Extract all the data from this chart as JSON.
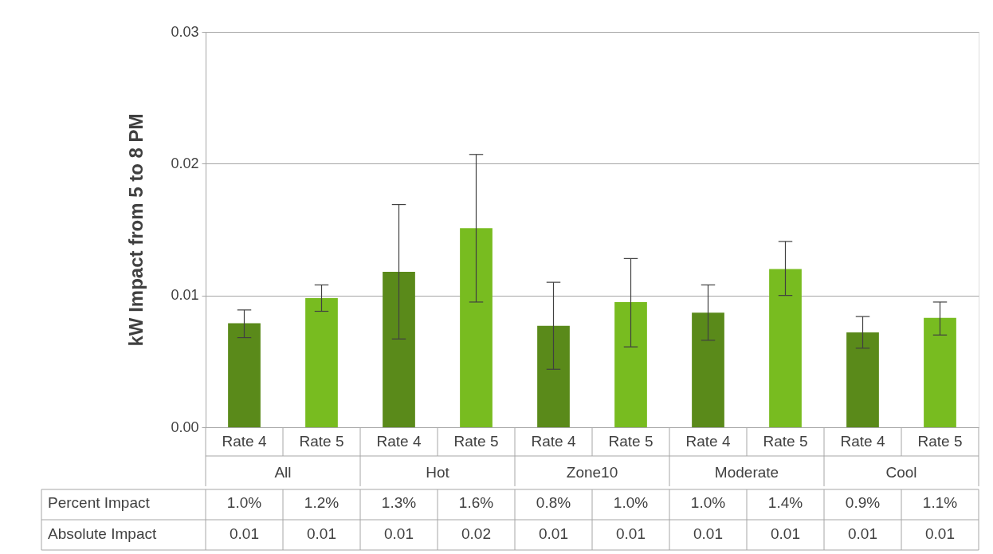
{
  "chart_data": {
    "type": "bar",
    "ylabel": "kW Impact from 5 to 8 PM",
    "categories": [
      "All",
      "Hot",
      "Zone10",
      "Moderate",
      "Cool"
    ],
    "series": [
      {
        "name": "Rate 4",
        "color": "#5a8a1a",
        "values": [
          0.0079,
          0.0118,
          0.0077,
          0.0087,
          0.0072
        ],
        "errors": [
          [
            0.0068,
            0.0089
          ],
          [
            0.0067,
            0.0169
          ],
          [
            0.0044,
            0.011
          ],
          [
            0.0066,
            0.0108
          ],
          [
            0.006,
            0.0084
          ]
        ]
      },
      {
        "name": "Rate 5",
        "color": "#78bc20",
        "values": [
          0.0098,
          0.0151,
          0.0095,
          0.012,
          0.0083
        ],
        "errors": [
          [
            0.0088,
            0.0108
          ],
          [
            0.0095,
            0.0207
          ],
          [
            0.0061,
            0.0128
          ],
          [
            0.01,
            0.0141
          ],
          [
            0.007,
            0.0095
          ]
        ]
      }
    ],
    "annotations": [
      "Percent Impact",
      "Absolute Impact",
      "1.0%",
      "1.2%",
      "1.3%",
      "1.6%",
      "0.8%",
      "1.0%",
      "1.0%",
      "1.4%",
      "0.9%",
      "1.1%",
      "0.01",
      "0.01",
      "0.01",
      "0.02",
      "0.01",
      "0.01",
      "0.01",
      "0.01",
      "0.01",
      "0.01"
    ],
    "ylim": [
      0,
      0.03
    ],
    "yticks": [
      {
        "value": 0,
        "label": "0.00"
      },
      {
        "value": 0.01,
        "label": "0.01"
      },
      {
        "value": 0.02,
        "label": "0.02"
      },
      {
        "value": 0.03,
        "label": "0.03"
      }
    ],
    "grid": "y"
  }
}
